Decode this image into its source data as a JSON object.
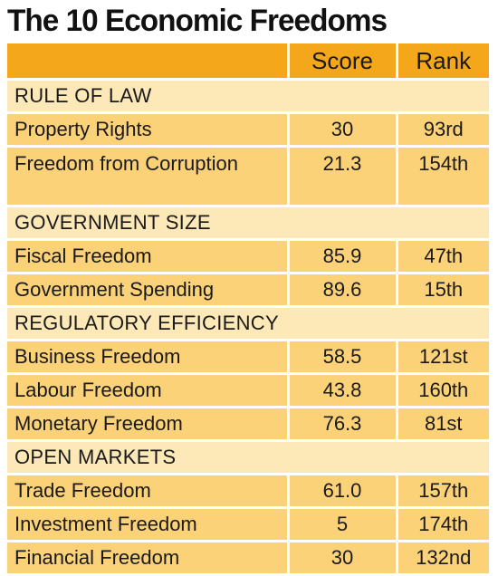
{
  "title": "The 10 Economic Freedoms",
  "columns": {
    "score": "Score",
    "rank": "Rank"
  },
  "sections": [
    {
      "name": "RULE OF LAW",
      "rows": [
        {
          "label": "Property Rights",
          "score": "30",
          "rank": "93rd"
        },
        {
          "label": "Freedom from Corruption",
          "score": "21.3",
          "rank": "154th"
        }
      ]
    },
    {
      "name": "GOVERNMENT SIZE",
      "rows": [
        {
          "label": "Fiscal Freedom",
          "score": "85.9",
          "rank": "47th"
        },
        {
          "label": "Government Spending",
          "score": "89.6",
          "rank": "15th"
        }
      ]
    },
    {
      "name": "REGULATORY EFFICIENCY",
      "rows": [
        {
          "label": "Business Freedom",
          "score": "58.5",
          "rank": "121st"
        },
        {
          "label": "Labour Freedom",
          "score": "43.8",
          "rank": "160th"
        },
        {
          "label": "Monetary Freedom",
          "score": "76.3",
          "rank": "81st"
        }
      ]
    },
    {
      "name": "OPEN MARKETS",
      "rows": [
        {
          "label": "Trade Freedom",
          "score": "61.0",
          "rank": "157th"
        },
        {
          "label": "Investment Freedom",
          "score": "5",
          "rank": "174th"
        },
        {
          "label": "Financial Freedom",
          "score": "30",
          "rank": "132nd"
        }
      ]
    }
  ]
}
